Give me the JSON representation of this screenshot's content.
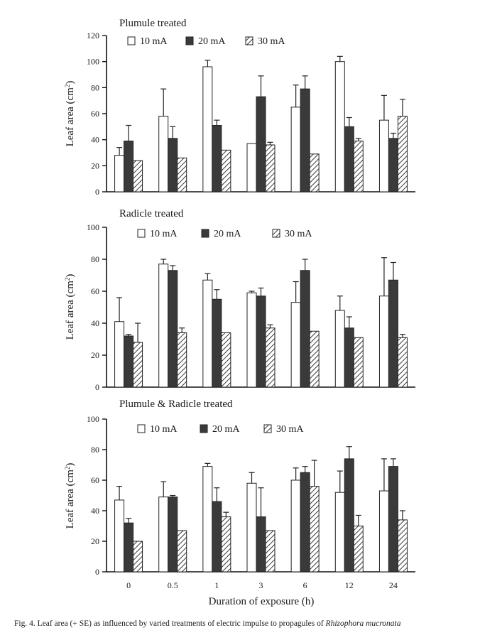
{
  "figure": {
    "caption_prefix": "Fig. 4. Leaf area (+ SE) as influenced by varied treatments of electric impulse to propagules of ",
    "caption_species": "Rhizophora mucronata",
    "xlabel": "Duration of exposure (h)"
  },
  "chart_data": [
    {
      "type": "bar",
      "title": "Plumule treated",
      "ylabel": "Leaf area (cm²)",
      "ylim": [
        0,
        120
      ],
      "yticks": [
        0,
        20,
        40,
        60,
        80,
        100,
        120
      ],
      "grid": false,
      "legend": "top-left",
      "categories": [
        "0",
        "0.5",
        "1",
        "3",
        "6",
        "12",
        "24"
      ],
      "series": [
        {
          "name": "10 mA",
          "style": "white",
          "values": [
            28,
            58,
            96,
            37,
            65,
            100,
            55
          ],
          "errors": [
            6,
            21,
            5,
            0,
            17,
            4,
            19
          ]
        },
        {
          "name": "20 mA",
          "style": "dark",
          "values": [
            39,
            41,
            51,
            73,
            79,
            50,
            41
          ],
          "errors": [
            12,
            9,
            4,
            16,
            10,
            7,
            4
          ]
        },
        {
          "name": "30 mA",
          "style": "hatched",
          "values": [
            24,
            26,
            32,
            36,
            29,
            39,
            58
          ],
          "errors": [
            0,
            0,
            0,
            2,
            0,
            2,
            13
          ]
        }
      ]
    },
    {
      "type": "bar",
      "title": "Radicle treated",
      "ylabel": "Leaf area (cm²)",
      "ylim": [
        0,
        100
      ],
      "yticks": [
        0,
        20,
        40,
        60,
        80,
        100
      ],
      "grid": false,
      "legend": "top-center",
      "categories": [
        "0",
        "0.5",
        "1",
        "3",
        "6",
        "12",
        "24"
      ],
      "series": [
        {
          "name": "10 mA",
          "style": "white",
          "values": [
            41,
            77,
            67,
            59,
            53,
            48,
            57
          ],
          "errors": [
            15,
            3,
            4,
            1,
            13,
            9,
            24
          ]
        },
        {
          "name": "20 mA",
          "style": "dark",
          "values": [
            32,
            73,
            55,
            57,
            73,
            37,
            67
          ],
          "errors": [
            1,
            3,
            6,
            5,
            7,
            7,
            11
          ]
        },
        {
          "name": "30 mA",
          "style": "hatched",
          "values": [
            28,
            34,
            34,
            37,
            35,
            31,
            31
          ],
          "errors": [
            12,
            3,
            0,
            2,
            0,
            0,
            2
          ]
        }
      ]
    },
    {
      "type": "bar",
      "title": "Plumule & Radicle treated",
      "ylabel": "Leaf area (cm²)",
      "ylim": [
        0,
        100
      ],
      "yticks": [
        0,
        20,
        40,
        60,
        80,
        100
      ],
      "grid": false,
      "legend": "top-left",
      "categories": [
        "0",
        "0.5",
        "1",
        "3",
        "6",
        "12",
        "24"
      ],
      "series": [
        {
          "name": "10 mA",
          "style": "white",
          "values": [
            47,
            49,
            69,
            58,
            60,
            52,
            53
          ],
          "errors": [
            9,
            10,
            2,
            7,
            8,
            14,
            21
          ]
        },
        {
          "name": "20 mA",
          "style": "dark",
          "values": [
            32,
            49,
            46,
            36,
            65,
            74,
            69
          ],
          "errors": [
            3,
            1,
            9,
            19,
            4,
            8,
            5
          ]
        },
        {
          "name": "30 mA",
          "style": "hatched",
          "values": [
            20,
            27,
            36,
            27,
            56,
            30,
            34
          ],
          "errors": [
            0,
            0,
            3,
            0,
            17,
            7,
            6
          ]
        }
      ]
    }
  ]
}
